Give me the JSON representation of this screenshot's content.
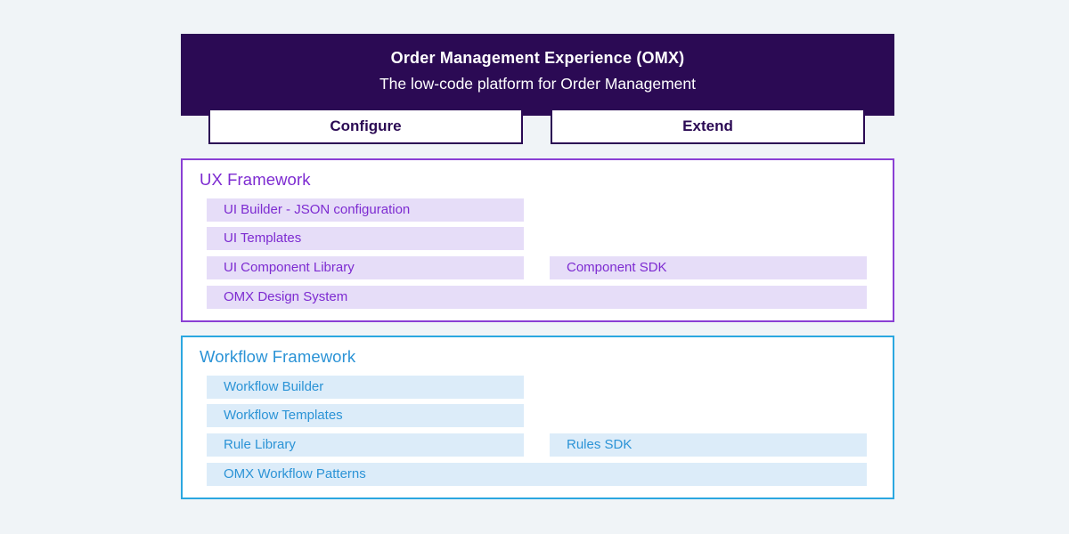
{
  "header": {
    "title": "Order Management Experience (OMX)",
    "subtitle": "The low-code platform for Order Management"
  },
  "tabs": [
    {
      "label": "Configure"
    },
    {
      "label": "Extend"
    }
  ],
  "sections": [
    {
      "title": "UX Framework",
      "rows": [
        {
          "left": "UI Builder - JSON configuration"
        },
        {
          "left": "UI Templates"
        },
        {
          "left": "UI Component Library",
          "right": "Component SDK"
        },
        {
          "full": "OMX Design System"
        }
      ]
    },
    {
      "title": "Workflow Framework",
      "rows": [
        {
          "left": "Workflow Builder"
        },
        {
          "left": "Workflow Templates"
        },
        {
          "left": "Rule Library",
          "right": "Rules SDK"
        },
        {
          "full": "OMX Workflow Patterns"
        }
      ]
    }
  ],
  "colors": {
    "page_background": "#f0f4f7",
    "header_band": "#2b0a54",
    "header_text": "#ffffff",
    "tab_border": "#2b0a54",
    "tab_text": "#2b0a54",
    "ux_border": "#8a3fd4",
    "ux_text": "#7d2bd1",
    "ux_bar_background": "#e6ddf8",
    "workflow_border": "#2ba7e0",
    "workflow_text": "#2b93d6",
    "workflow_bar_background": "#dcecf9"
  }
}
